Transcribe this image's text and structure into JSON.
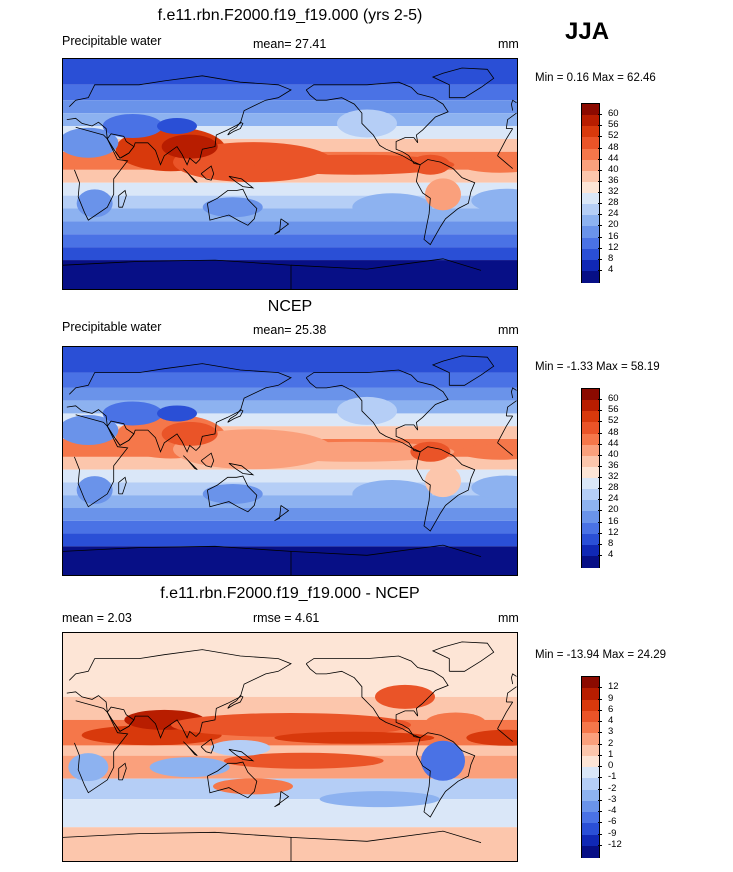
{
  "season": "JJA",
  "panels": [
    {
      "title": "f.e11.rbn.F2000.f19_f19.000 (yrs 2-5)",
      "left_label": "Precipitable water",
      "center_label": "mean=  27.41",
      "right_label": "mm",
      "minmax": "Min =   0.16 Max =  62.46",
      "kind": "abs",
      "colorbar": {
        "labels": [
          "60",
          "56",
          "52",
          "48",
          "44",
          "40",
          "36",
          "32",
          "28",
          "24",
          "20",
          "16",
          "12",
          "8",
          "4"
        ],
        "colors": [
          "#8b0a00",
          "#b81d00",
          "#d8390c",
          "#ea5428",
          "#f5774a",
          "#faa07c",
          "#fcc6ac",
          "#fde5d6",
          "#dae7f8",
          "#b5cef6",
          "#8db2f0",
          "#6a93ea",
          "#4a72e5",
          "#2a4fd6",
          "#1028b5",
          "#070f86"
        ]
      }
    },
    {
      "title": "NCEP",
      "left_label": "Precipitable water",
      "center_label": "mean=  25.38",
      "right_label": "mm",
      "minmax": "Min =  -1.33 Max =  58.19",
      "kind": "abs",
      "colorbar": {
        "labels": [
          "60",
          "56",
          "52",
          "48",
          "44",
          "40",
          "36",
          "32",
          "28",
          "24",
          "20",
          "16",
          "12",
          "8",
          "4"
        ],
        "colors": [
          "#8b0a00",
          "#b81d00",
          "#d8390c",
          "#ea5428",
          "#f5774a",
          "#faa07c",
          "#fcc6ac",
          "#fde5d6",
          "#dae7f8",
          "#b5cef6",
          "#8db2f0",
          "#6a93ea",
          "#4a72e5",
          "#2a4fd6",
          "#1028b5",
          "#070f86"
        ]
      }
    },
    {
      "title": "f.e11.rbn.F2000.f19_f19.000 - NCEP",
      "left_label": "mean =   2.03",
      "center_label": "rmse =   4.61",
      "right_label": "mm",
      "minmax": "Min = -13.94 Max =  24.29",
      "kind": "diff",
      "colorbar": {
        "labels": [
          "12",
          "9",
          "6",
          "4",
          "3",
          "2",
          "1",
          "0",
          "-1",
          "-2",
          "-3",
          "-4",
          "-6",
          "-9",
          "-12"
        ],
        "colors": [
          "#8b0a00",
          "#b81d00",
          "#d8390c",
          "#ea5428",
          "#f5774a",
          "#faa07c",
          "#fcc6ac",
          "#fde5d6",
          "#dae7f8",
          "#b5cef6",
          "#8db2f0",
          "#6a93ea",
          "#4a72e5",
          "#2a4fd6",
          "#1028b5",
          "#070f86"
        ]
      }
    }
  ]
}
